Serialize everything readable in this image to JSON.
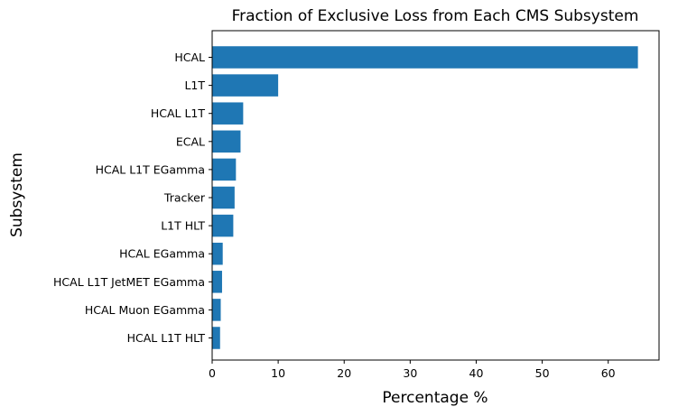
{
  "chart_data": {
    "type": "bar",
    "orientation": "horizontal",
    "title": "Fraction of Exclusive Loss from Each CMS Subsystem",
    "xlabel": "Percentage %",
    "ylabel": "Subsystem",
    "categories": [
      "HCAL",
      "L1T",
      "HCAL L1T",
      "ECAL",
      "HCAL L1T EGamma",
      "Tracker",
      "L1T HLT",
      "HCAL EGamma",
      "HCAL L1T JetMET EGamma",
      "HCAL Muon EGamma",
      "HCAL L1T HLT"
    ],
    "values": [
      64.5,
      10.0,
      4.7,
      4.3,
      3.6,
      3.4,
      3.2,
      1.6,
      1.5,
      1.3,
      1.2
    ],
    "xlim": [
      0,
      67.7
    ],
    "xticks": [
      0,
      10,
      20,
      30,
      40,
      50,
      60
    ],
    "grid": false,
    "colors": {
      "bar": "#1f77b4",
      "axis": "#000000",
      "text": "#000000"
    }
  }
}
